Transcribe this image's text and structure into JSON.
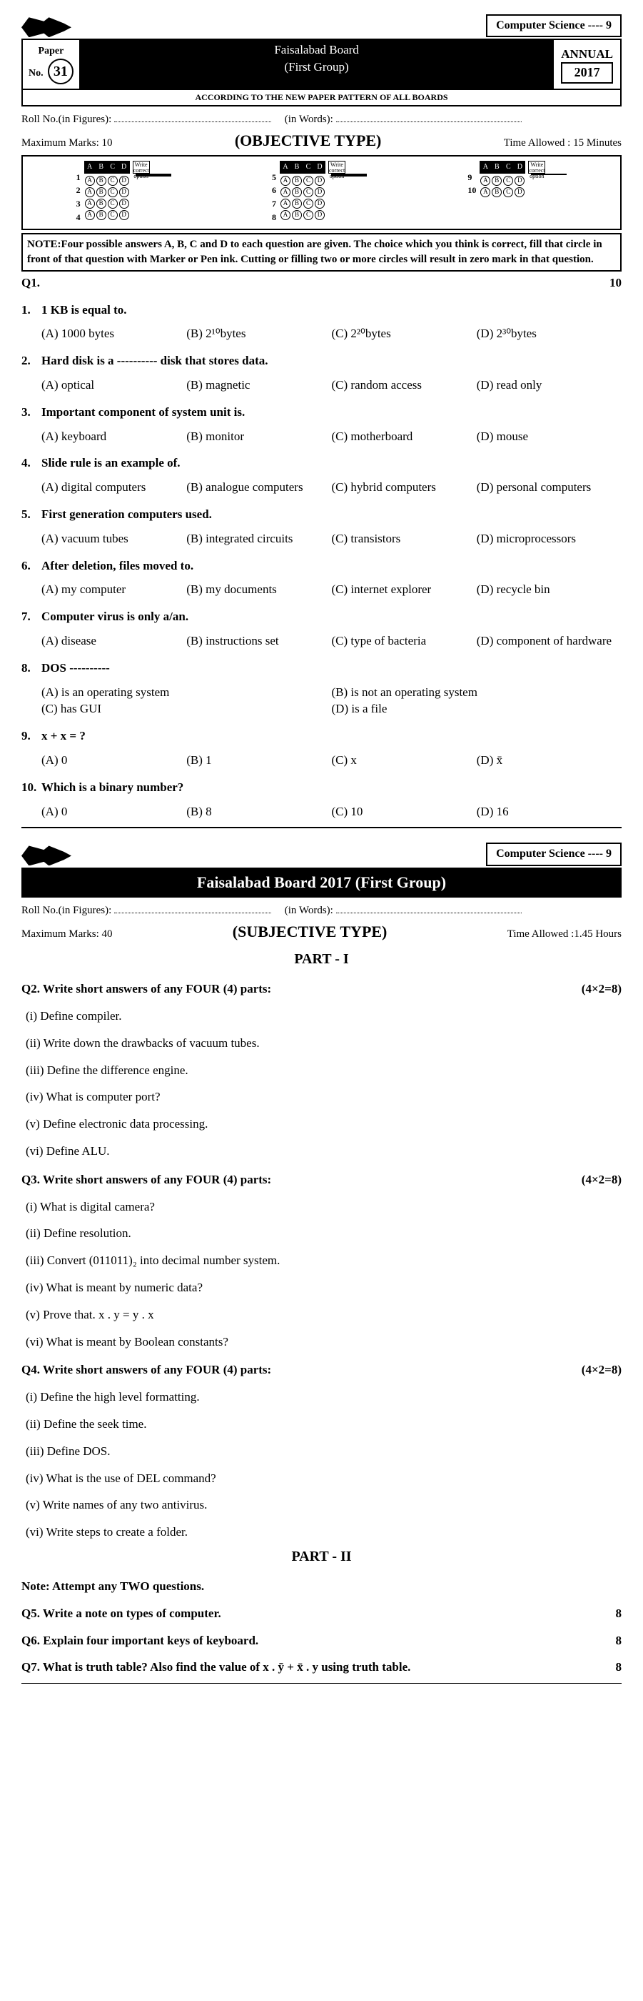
{
  "topTag": "Computer Science ---- 9",
  "header": {
    "paperLabel": "Paper",
    "paperNoLabel": "No.",
    "paperNo": "31",
    "board": "Faisalabad Board",
    "group": "(First Group)",
    "annual": "ANNUAL",
    "year": "2017",
    "patternNote": "ACCORDING TO THE NEW PAPER PATTERN OF ALL BOARDS"
  },
  "roll": {
    "figLabel": "Roll No.(in Figures):",
    "wordsLabel": "(in Words):"
  },
  "objective": {
    "maxMarks": "Maximum Marks:  10",
    "typeTitle": "(OBJECTIVE TYPE)",
    "timeAllowed": "Time Allowed : 15 Minutes",
    "letters": [
      "A",
      "B",
      "C",
      "D"
    ],
    "writeOption": "Write correct option",
    "note": "NOTE:Four possible answers A, B, C and D to each question are given. The choice which you think is correct, fill that circle in front of that question with Marker or Pen ink. Cutting or filling two or more circles will result in zero mark in that question.",
    "q1Label": "Q1.",
    "totalMarks": "10"
  },
  "mcqs": [
    {
      "n": "1.",
      "text": "1 KB is equal to.",
      "opts": [
        "(A)  1000 bytes",
        "(B)  2¹⁰bytes",
        "(C)  2²⁰bytes",
        "(D)  2³⁰bytes"
      ]
    },
    {
      "n": "2.",
      "text": "Hard disk is a ---------- disk that stores data.",
      "opts": [
        "(A)  optical",
        "(B)  magnetic",
        "(C)  random access",
        "(D)  read only"
      ]
    },
    {
      "n": "3.",
      "text": "Important component of system unit is.",
      "opts": [
        "(A)  keyboard",
        "(B)  monitor",
        "(C)  motherboard",
        "(D)  mouse"
      ]
    },
    {
      "n": "4.",
      "text": "Slide rule is an example of.",
      "opts": [
        "(A)  digital computers",
        "(B)  analogue computers",
        "(C)  hybrid computers",
        "(D)  personal computers"
      ]
    },
    {
      "n": "5.",
      "text": "First generation computers used.",
      "opts": [
        "(A)  vacuum tubes",
        "(B)  integrated circuits",
        "(C)  transistors",
        "(D)  microprocessors"
      ]
    },
    {
      "n": "6.",
      "text": "After deletion, files moved to.",
      "opts": [
        "(A)  my computer",
        "(B)  my documents",
        "(C)  internet explorer",
        "(D)  recycle bin"
      ]
    },
    {
      "n": "7.",
      "text": "Computer virus is only a/an.",
      "opts": [
        "(A)  disease",
        "(B)  instructions set",
        "(C)  type of bacteria",
        "(D) component of hardware"
      ]
    },
    {
      "n": "8.",
      "text": "DOS ----------",
      "opts": [
        "(A)  is an operating system",
        "(B)  is not an operating system",
        "(C)  has GUI",
        "(D)  is a file"
      ],
      "cols": 2
    },
    {
      "n": "9.",
      "text": "x + x = ?",
      "opts": [
        "(A)  0",
        "(B)  1",
        "(C)  x",
        "(D)  x̄"
      ]
    },
    {
      "n": "10.",
      "text": "Which is a binary number?",
      "opts": [
        "(A)  0",
        "(B)  8",
        "(C)  10",
        "(D)  16"
      ]
    }
  ],
  "subjective": {
    "barTitle": "Faisalabad Board 2017  (First Group)",
    "maxMarks": "Maximum Marks:  40",
    "typeTitle": "(SUBJECTIVE  TYPE)",
    "timeAllowed": "Time Allowed :1.45 Hours",
    "part1": "PART - I",
    "part2": "PART - II",
    "marks8": "(4×2=8)"
  },
  "shortQuestions": [
    {
      "q": "Q2.  Write short answers of any FOUR (4) parts:",
      "parts": [
        "(i)    Define compiler.",
        "(ii)   Write down the drawbacks of vacuum tubes.",
        "(iii)  Define the difference engine.",
        "(iv)  What is computer port?",
        "(v)   Define electronic data processing.",
        "(vi)  Define ALU."
      ]
    },
    {
      "q": "Q3.  Write short answers of any FOUR (4) parts:",
      "parts": [
        "(i)    What is digital camera?",
        "(ii)   Define resolution.",
        "(iii)  Convert (011011)₂ into decimal number system.",
        "(iv)  What is meant by numeric data?",
        "(v)   Prove that. x . y = y . x",
        "(vi)  What is meant by Boolean constants?"
      ]
    },
    {
      "q": "Q4.  Write short answers of any FOUR (4) parts:",
      "parts": [
        "(i)    Define the high level formatting.",
        "(ii)   Define the seek time.",
        "(iii)  Define DOS.",
        "(iv)  What is the use of DEL command?",
        "(v)   Write names of any two antivirus.",
        "(vi)  Write steps to create a folder."
      ]
    }
  ],
  "part2Note": "Note: Attempt any TWO questions.",
  "longQuestions": [
    {
      "q": "Q5.  Write a note on types of computer.",
      "m": "8"
    },
    {
      "q": "Q6.  Explain four important keys of keyboard.",
      "m": "8"
    },
    {
      "q": "Q7.  What is truth table? Also find the value of x . ȳ + x̄ . y using truth table.",
      "m": "8"
    }
  ]
}
